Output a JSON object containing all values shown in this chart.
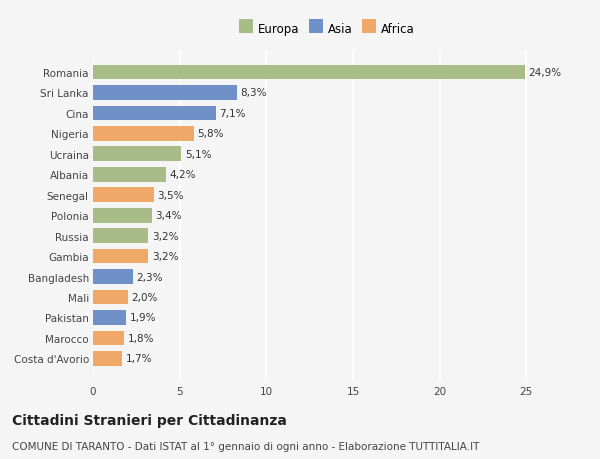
{
  "categories": [
    "Costa d'Avorio",
    "Marocco",
    "Pakistan",
    "Mali",
    "Bangladesh",
    "Gambia",
    "Russia",
    "Polonia",
    "Senegal",
    "Albania",
    "Ucraina",
    "Nigeria",
    "Cina",
    "Sri Lanka",
    "Romania"
  ],
  "values": [
    1.7,
    1.8,
    1.9,
    2.0,
    2.3,
    3.2,
    3.2,
    3.4,
    3.5,
    4.2,
    5.1,
    5.8,
    7.1,
    8.3,
    24.9
  ],
  "colors": [
    "#f0a868",
    "#f0a868",
    "#7090c8",
    "#f0a868",
    "#7090c8",
    "#f0a868",
    "#a8bc88",
    "#a8bc88",
    "#f0a868",
    "#a8bc88",
    "#a8bc88",
    "#f0a868",
    "#7090c8",
    "#7090c8",
    "#a8bc88"
  ],
  "labels": [
    "1,7%",
    "1,8%",
    "1,9%",
    "2,0%",
    "2,3%",
    "3,2%",
    "3,2%",
    "3,4%",
    "3,5%",
    "4,2%",
    "5,1%",
    "5,8%",
    "7,1%",
    "8,3%",
    "24,9%"
  ],
  "legend": [
    {
      "label": "Europa",
      "color": "#a8bc88"
    },
    {
      "label": "Asia",
      "color": "#7090c8"
    },
    {
      "label": "Africa",
      "color": "#f0a868"
    }
  ],
  "title": "Cittadini Stranieri per Cittadinanza",
  "subtitle": "COMUNE DI TARANTO - Dati ISTAT al 1° gennaio di ogni anno - Elaborazione TUTTITALIA.IT",
  "xlim": [
    0,
    27
  ],
  "xticks": [
    0,
    5,
    10,
    15,
    20,
    25
  ],
  "background_color": "#f5f5f5",
  "bar_height": 0.72,
  "title_fontsize": 10,
  "subtitle_fontsize": 7.5,
  "tick_fontsize": 7.5,
  "label_fontsize": 7.5,
  "legend_fontsize": 8.5
}
